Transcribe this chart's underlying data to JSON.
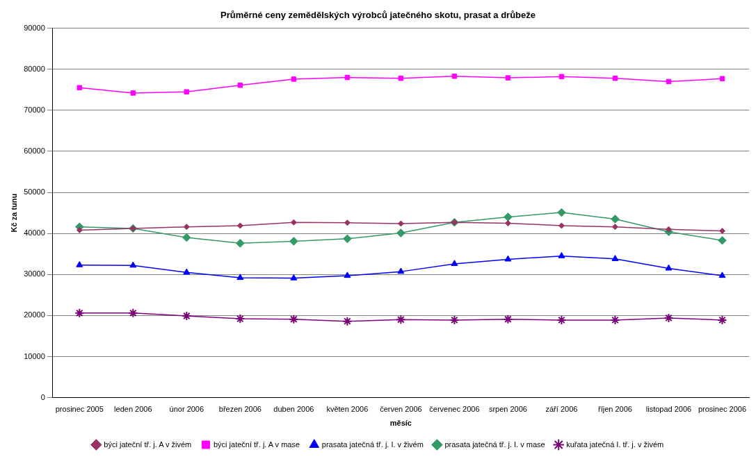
{
  "chart_data": {
    "type": "line",
    "title": "Průměrné ceny zemědělských výrobců jatečného skotu, prasat a drůbeže",
    "xlabel": "měsíc",
    "ylabel": "Kč za tunu",
    "categories": [
      "prosinec 2005",
      "leden 2006",
      "únor 2006",
      "březen 2006",
      "duben 2006",
      "květen 2006",
      "červen 2006",
      "červenec 2006",
      "srpen 2006",
      "září 2006",
      "říjen 2006",
      "listopad 2006",
      "prosinec 2006"
    ],
    "series": [
      {
        "name": "býci jateční tř. j. A v živém",
        "color": "#993366",
        "marker": "diamond",
        "values": [
          40800,
          41200,
          41600,
          41900,
          42700,
          42600,
          42400,
          42700,
          42500,
          41900,
          41600,
          41000,
          40600
        ]
      },
      {
        "name": "býci jateční tř. j. A v mase",
        "color": "#ff00ff",
        "marker": "square",
        "values": [
          75500,
          74200,
          74500,
          76100,
          77600,
          78000,
          77800,
          78300,
          77900,
          78200,
          77800,
          77000,
          77700
        ]
      },
      {
        "name": "prasata jatečná tř. j. I. v živém",
        "color": "#0000ff",
        "marker": "triangle",
        "values": [
          32300,
          32200,
          30500,
          29200,
          29100,
          29700,
          30700,
          32600,
          33700,
          34500,
          33800,
          31500,
          29700
        ]
      },
      {
        "name": "prasata jatečná tř. j. I. v mase",
        "color": "#339966",
        "marker": "diamond",
        "values": [
          41600,
          41200,
          39000,
          37600,
          38100,
          38700,
          40100,
          42700,
          44000,
          45100,
          43500,
          40400,
          38300
        ]
      },
      {
        "name": "kuřata jatečná I. tř. j. v živém",
        "color": "#800080",
        "marker": "cross",
        "values": [
          20600,
          20600,
          19900,
          19200,
          19100,
          18600,
          19000,
          18900,
          19100,
          18900,
          18900,
          19400,
          18900
        ]
      }
    ],
    "ylim": [
      0,
      90000
    ],
    "yticks": [
      0,
      10000,
      20000,
      30000,
      40000,
      50000,
      60000,
      70000,
      80000,
      90000
    ],
    "grid": "y",
    "legend": "bottom",
    "line_style": "solid"
  }
}
